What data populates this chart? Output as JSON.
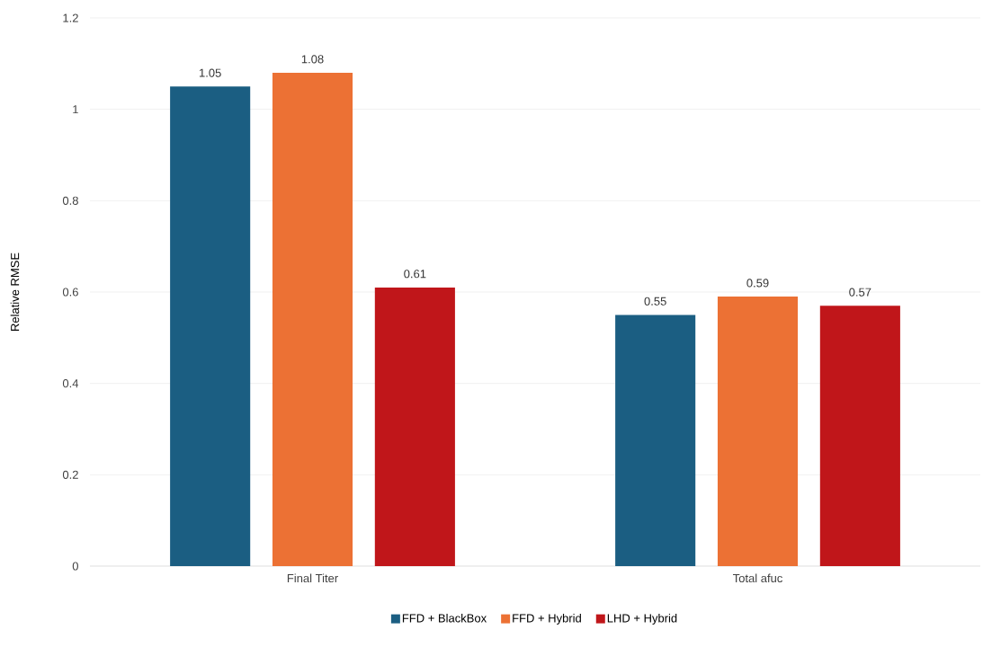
{
  "chart_data": {
    "type": "bar",
    "ylabel": "Relative RMSE",
    "categories": [
      "Final Titer",
      "Total afuc"
    ],
    "series": [
      {
        "name": "FFD + BlackBox",
        "color": "#1b5e82",
        "values": [
          1.05,
          0.55
        ]
      },
      {
        "name": "FFD + Hybrid",
        "color": "#ec7134",
        "values": [
          1.08,
          0.59
        ]
      },
      {
        "name": "LHD + Hybrid",
        "color": "#c0161a",
        "values": [
          0.61,
          0.57
        ]
      }
    ],
    "ylim": [
      0,
      1.2
    ],
    "yticks": [
      0,
      0.2,
      0.4,
      0.6,
      0.8,
      1,
      1.2
    ],
    "grid": "y",
    "legend": "bottom",
    "data_labels": true
  }
}
